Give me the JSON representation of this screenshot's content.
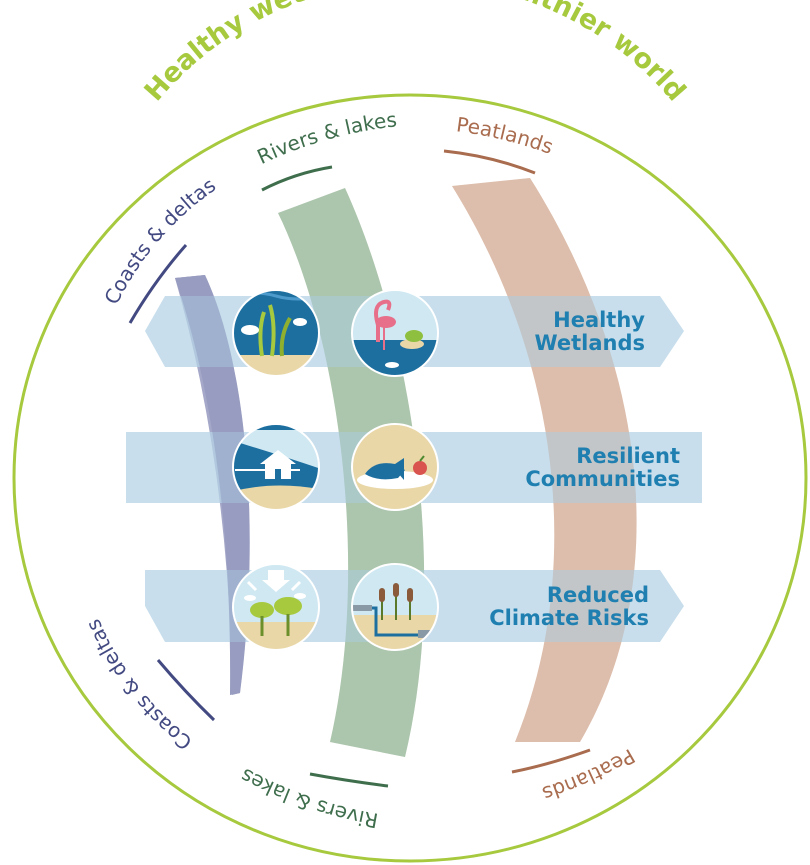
{
  "title": "Healthy wetlands for a healthier world",
  "arcs": [
    {
      "label": "Coasts & deltas",
      "color": "#a5a8c8"
    },
    {
      "label": "Rivers & lakes",
      "color": "#b8ccb4"
    },
    {
      "label": "Peatlands",
      "color": "#e3c5b4"
    }
  ],
  "arc_label_colors": [
    "#434a82",
    "#3f6e4d",
    "#a96c4e"
  ],
  "bands": [
    {
      "line1": "Healthy",
      "line2": "Wetlands"
    },
    {
      "line1": "Resilient",
      "line2": "Communities"
    },
    {
      "line1": "Reduced",
      "line2": "Climate Risks"
    }
  ],
  "icons": [
    "fish-seagrass-icon",
    "flamingo-turtle-icon",
    "house-coast-icon",
    "fish-catch-icon",
    "mangrove-rain-icon",
    "cattail-pipe-icon"
  ],
  "colors": {
    "ring": "#a6c93e",
    "band": "#b5d3e6",
    "band_text": "#1e7fb0",
    "title": "#a6c93e"
  }
}
